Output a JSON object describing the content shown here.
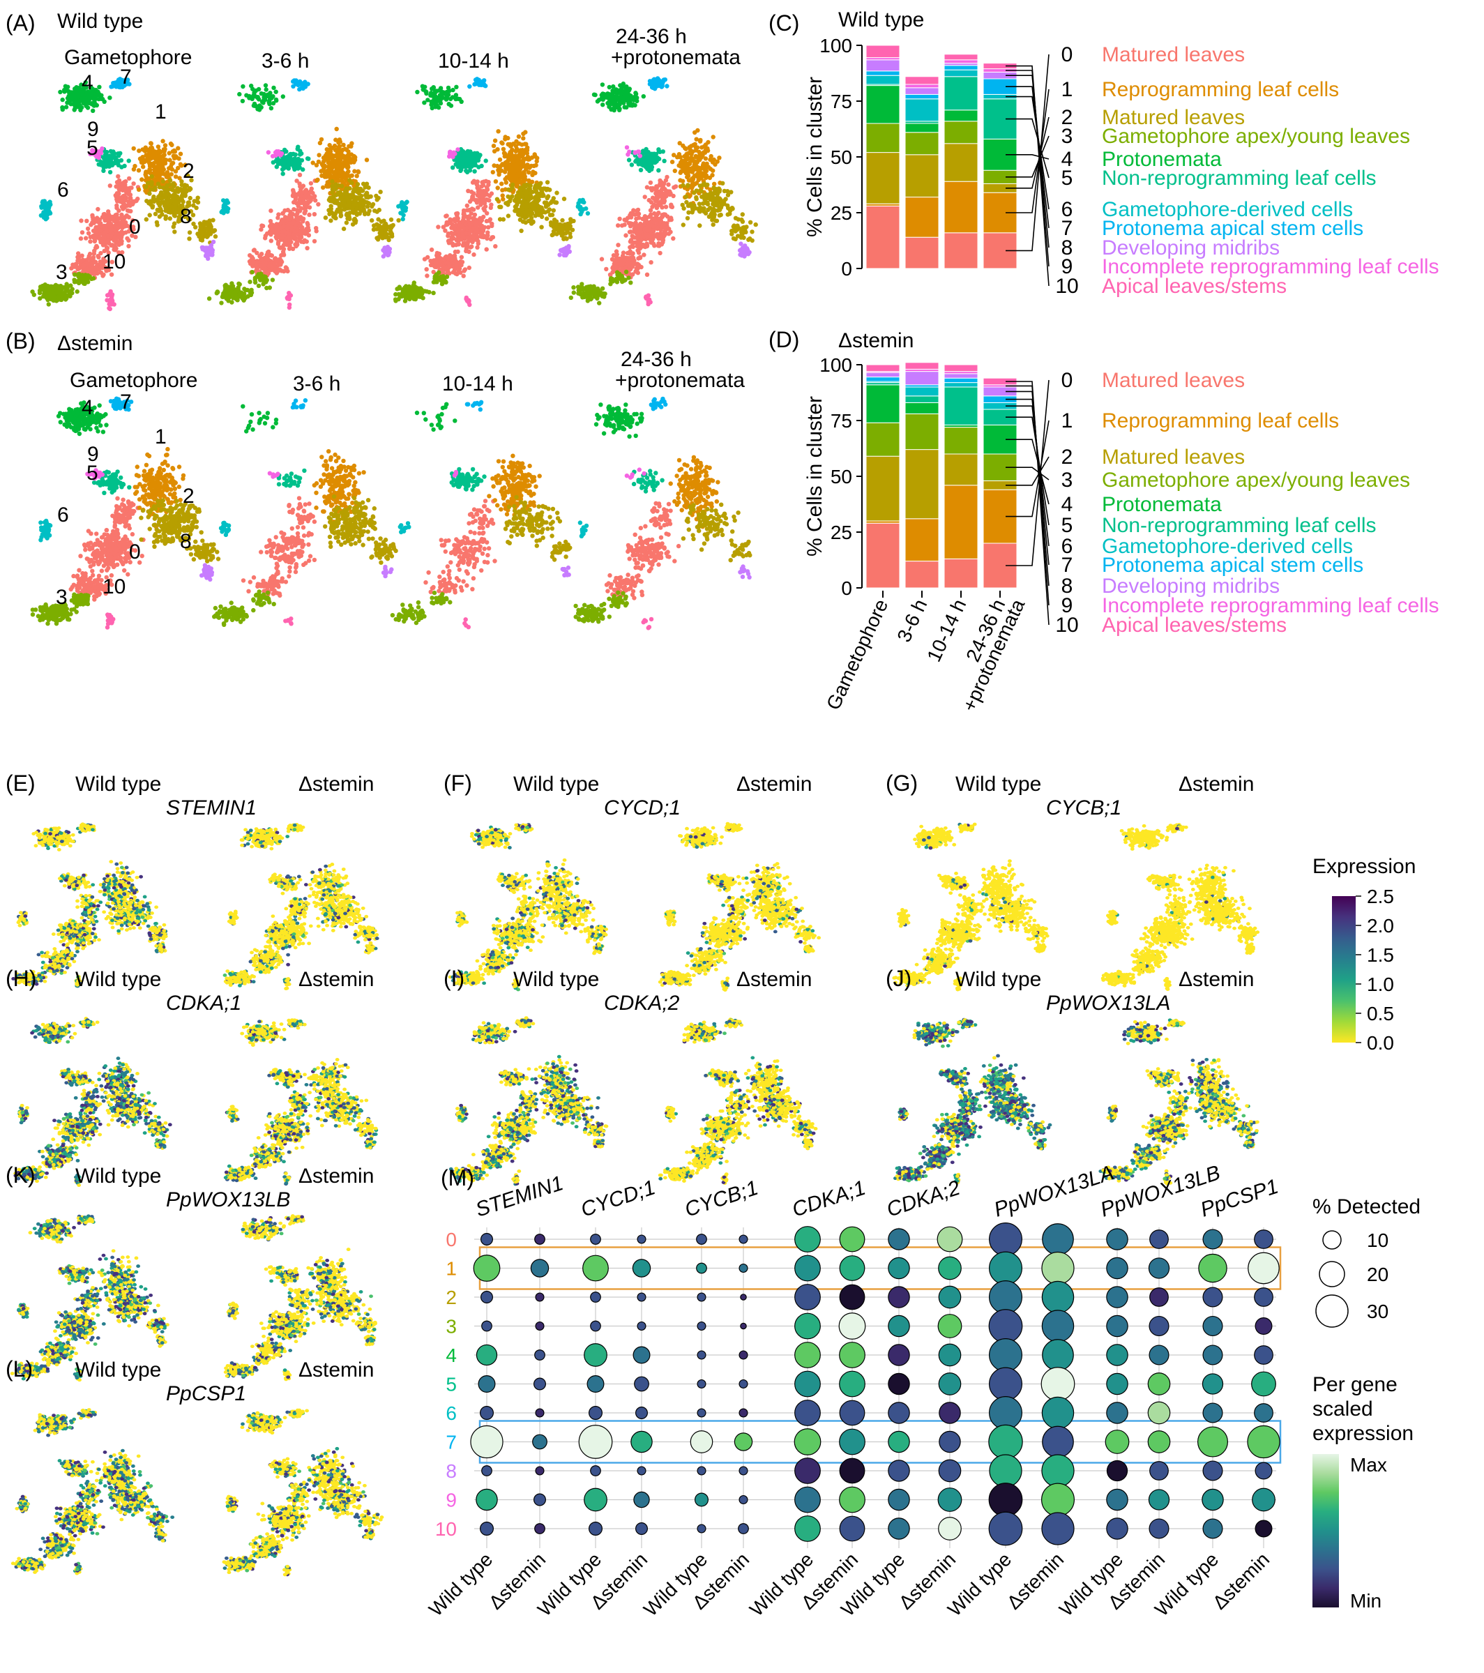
{
  "panels_umap": [
    {
      "letter": "(A)",
      "genotype": "Wild type",
      "labels": [
        "Gametophore",
        "3-6 h",
        "10-14 h",
        "24-36 h",
        "+protonemata"
      ],
      "show_numbers": true
    },
    {
      "letter": "(B)",
      "genotype": "Δstemin",
      "labels": [
        "Gametophore",
        "3-6 h",
        "10-14 h",
        "24-36 h",
        "+protonemata"
      ],
      "show_numbers": true
    }
  ],
  "cluster_numbers": [
    "0",
    "1",
    "2",
    "3",
    "4",
    "5",
    "6",
    "7",
    "8",
    "9",
    "10"
  ],
  "cluster_names": [
    "Matured leaves",
    "Reprogramming leaf cells",
    "Matured leaves",
    "Gametophore apex/young leaves",
    "Protonemata",
    "Non-reprogramming leaf cells",
    "Gametophore-derived cells",
    "Protonema apical stem cells",
    "Developing midribs",
    "Incomplete reprogramming leaf cells",
    "Apical leaves/stems"
  ],
  "cluster_colors": [
    "#F8766D",
    "#DE8C00",
    "#B79F00",
    "#7CAE00",
    "#00BA38",
    "#00C08B",
    "#00BFC4",
    "#00B4F0",
    "#C77CFF",
    "#F564E3",
    "#FF64B0"
  ],
  "expr_panels": [
    {
      "letter": "(E)",
      "wt": "Wild type",
      "ko": "Δstemin",
      "gene": "STEMIN1"
    },
    {
      "letter": "(F)",
      "wt": "Wild type",
      "ko": "Δstemin",
      "gene": "CYCD;1"
    },
    {
      "letter": "(G)",
      "wt": "Wild type",
      "ko": "Δstemin",
      "gene": "CYCB;1"
    },
    {
      "letter": "(H)",
      "wt": "Wild type",
      "ko": "Δstemin",
      "gene": "CDKA;1"
    },
    {
      "letter": "(I)",
      "wt": "Wild type",
      "ko": "Δstemin",
      "gene": "CDKA;2"
    },
    {
      "letter": "(J)",
      "wt": "Wild type",
      "ko": "Δstemin",
      "gene": "PpWOX13LA"
    },
    {
      "letter": "(K)",
      "wt": "Wild type",
      "ko": "Δstemin",
      "gene": "PpWOX13LB"
    },
    {
      "letter": "(L)",
      "wt": "Wild type",
      "ko": "Δstemin",
      "gene": "PpCSP1"
    }
  ],
  "expression_legend": {
    "title": "Expression",
    "ticks": [
      "2.5",
      "2.0",
      "1.5",
      "1.0",
      "0.5",
      "0.0"
    ],
    "values": [
      2.5,
      2.0,
      1.5,
      1.0,
      0.5,
      0.0
    ]
  },
  "dot_legend": {
    "title": "% Detected",
    "sizes": [
      "10",
      "20",
      "30"
    ],
    "values": [
      10,
      20,
      30
    ],
    "scale_title_lines": [
      "Per gene",
      "scaled",
      "expression"
    ],
    "max_label": "Max",
    "min_label": "Min"
  },
  "panel_m_letter": "(M)",
  "chart_data": [
    {
      "type": "bar",
      "stacked": true,
      "panel": "(C)",
      "title": "Wild type",
      "ylabel": "% Cells in cluster",
      "ylim": [
        0,
        100
      ],
      "yticks": [
        "0",
        "25",
        "50",
        "75",
        "100"
      ],
      "categories": [
        "Gametophore",
        "3-6 h",
        "10-14 h",
        "24-36 h +protonemata"
      ],
      "series": [
        {
          "name": "0 Matured leaves",
          "values": [
            28,
            14,
            16,
            16
          ]
        },
        {
          "name": "1 Reprogramming leaf cells",
          "values": [
            1,
            18,
            23,
            18
          ]
        },
        {
          "name": "2 Matured leaves",
          "values": [
            23,
            19,
            17,
            4
          ]
        },
        {
          "name": "3 Gametophore apex/young leaves",
          "values": [
            13,
            10,
            10,
            6
          ]
        },
        {
          "name": "4 Protonemata",
          "values": [
            17,
            4,
            5,
            14
          ]
        },
        {
          "name": "5 Non-reprogramming leaf cells",
          "values": [
            0.5,
            1,
            15,
            18
          ]
        },
        {
          "name": "6 Gametophore-derived cells",
          "values": [
            4,
            10,
            3,
            2
          ]
        },
        {
          "name": "7 Protonema apical stem cells",
          "values": [
            2,
            2,
            2,
            7
          ]
        },
        {
          "name": "8 Developing midribs",
          "values": [
            5,
            3,
            1,
            3
          ]
        },
        {
          "name": "9 Incomplete reprogramming leaf cells",
          "values": [
            1,
            1.5,
            1.5,
            1.5
          ]
        },
        {
          "name": "10 Apical leaves/stems",
          "values": [
            5.5,
            3.5,
            2.5,
            2.5
          ]
        }
      ]
    },
    {
      "type": "bar",
      "stacked": true,
      "panel": "(D)",
      "title": "Δstemin",
      "ylabel": "% Cells in cluster",
      "ylim": [
        0,
        100
      ],
      "yticks": [
        "0",
        "25",
        "50",
        "75",
        "100"
      ],
      "categories": [
        "Gametophore",
        "3-6 h",
        "10-14 h",
        "24-36 h +protonemata"
      ],
      "series": [
        {
          "name": "0 Matured leaves",
          "values": [
            29,
            12,
            13,
            20
          ]
        },
        {
          "name": "1 Reprogramming leaf cells",
          "values": [
            1,
            19,
            33,
            24
          ]
        },
        {
          "name": "2 Matured leaves",
          "values": [
            29,
            31,
            14,
            4
          ]
        },
        {
          "name": "3 Gametophore apex/young leaves",
          "values": [
            15,
            16,
            12,
            12
          ]
        },
        {
          "name": "4 Protonemata",
          "values": [
            17,
            5,
            1,
            13
          ]
        },
        {
          "name": "5 Non-reprogramming leaf cells",
          "values": [
            1,
            3,
            17,
            7
          ]
        },
        {
          "name": "6 Gametophore-derived cells",
          "values": [
            0.5,
            4,
            2,
            3
          ]
        },
        {
          "name": "7 Protonema apical stem cells",
          "values": [
            2,
            1,
            2,
            3
          ]
        },
        {
          "name": "8 Developing midribs",
          "values": [
            2,
            6,
            2,
            4
          ]
        },
        {
          "name": "9 Incomplete reprogramming leaf cells",
          "values": [
            0.5,
            1,
            1,
            1
          ]
        },
        {
          "name": "10 Apical leaves/stems",
          "values": [
            3,
            3,
            3,
            3
          ]
        }
      ]
    },
    {
      "type": "dot",
      "panel": "(M)",
      "genes": [
        "STEMIN1",
        "CYCD;1",
        "CYCB;1",
        "CDKA;1",
        "CDKA;2",
        "PpWOX13LA",
        "PpWOX13LB",
        "PpCSP1"
      ],
      "conditions": [
        "Wild type",
        "Δstemin"
      ],
      "clusters": [
        "0",
        "1",
        "2",
        "3",
        "4",
        "5",
        "6",
        "7",
        "8",
        "9",
        "10"
      ],
      "highlighted_clusters": [
        "1",
        "7"
      ],
      "pct_detected": [
        [
          4,
          3,
          3,
          2,
          3,
          2,
          19,
          18,
          13,
          18,
          31,
          28,
          13,
          10,
          11,
          10
        ],
        [
          20,
          9,
          19,
          9,
          3,
          2,
          19,
          18,
          13,
          15,
          31,
          30,
          13,
          12,
          23,
          28
        ],
        [
          4,
          2,
          3,
          2,
          2,
          1,
          19,
          18,
          13,
          14,
          31,
          29,
          13,
          10,
          11,
          10
        ],
        [
          3,
          2,
          3,
          2,
          2,
          1,
          19,
          20,
          13,
          16,
          32,
          29,
          13,
          11,
          11,
          8
        ],
        [
          12,
          3,
          15,
          8,
          2,
          2,
          19,
          19,
          13,
          14,
          31,
          28,
          13,
          11,
          11,
          10
        ],
        [
          8,
          4,
          8,
          6,
          2,
          2,
          19,
          19,
          13,
          14,
          31,
          32,
          13,
          14,
          12,
          17
        ],
        [
          5,
          2,
          5,
          4,
          2,
          2,
          19,
          18,
          13,
          13,
          31,
          29,
          13,
          14,
          11,
          10
        ],
        [
          30,
          6,
          32,
          13,
          14,
          9,
          20,
          19,
          13,
          13,
          33,
          28,
          16,
          14,
          26,
          30
        ],
        [
          3,
          2,
          3,
          2,
          2,
          2,
          19,
          18,
          13,
          14,
          30,
          30,
          12,
          10,
          11,
          8
        ],
        [
          13,
          4,
          15,
          7,
          5,
          2,
          19,
          19,
          13,
          16,
          32,
          31,
          13,
          12,
          13,
          15
        ],
        [
          5,
          3,
          5,
          4,
          2,
          3,
          19,
          18,
          13,
          15,
          32,
          30,
          13,
          11,
          11,
          8
        ]
      ],
      "scaled_expression": [
        [
          0.2,
          0.1,
          0.3,
          0.2,
          0.2,
          0.2,
          0.6,
          0.7,
          0.35,
          0.9,
          0.25,
          0.4,
          0.35,
          0.2,
          0.35,
          0.3
        ],
        [
          0.8,
          0.35,
          0.75,
          0.5,
          0.45,
          0.4,
          0.45,
          0.6,
          0.45,
          0.6,
          0.45,
          0.9,
          0.4,
          0.4,
          0.75,
          0.95
        ],
        [
          0.25,
          0.1,
          0.3,
          0.2,
          0.2,
          0.1,
          0.2,
          0.0,
          0.1,
          0.45,
          0.35,
          0.45,
          0.35,
          0.1,
          0.3,
          0.3
        ],
        [
          0.25,
          0.1,
          0.3,
          0.2,
          0.2,
          0.1,
          0.6,
          0.95,
          0.45,
          0.75,
          0.3,
          0.35,
          0.35,
          0.3,
          0.35,
          0.15
        ],
        [
          0.65,
          0.2,
          0.65,
          0.35,
          0.2,
          0.1,
          0.7,
          0.75,
          0.1,
          0.55,
          0.35,
          0.5,
          0.55,
          0.4,
          0.4,
          0.3
        ],
        [
          0.35,
          0.2,
          0.4,
          0.3,
          0.3,
          0.2,
          0.55,
          0.65,
          0.05,
          0.5,
          0.2,
          1.0,
          0.55,
          0.75,
          0.45,
          0.6
        ],
        [
          0.25,
          0.1,
          0.25,
          0.2,
          0.2,
          0.1,
          0.3,
          0.2,
          0.2,
          0.1,
          0.35,
          0.45,
          0.35,
          0.9,
          0.35,
          0.4
        ],
        [
          1.0,
          0.35,
          1.0,
          0.6,
          0.95,
          0.8,
          0.75,
          0.55,
          0.6,
          0.3,
          0.65,
          0.3,
          0.75,
          0.7,
          0.75,
          0.75
        ],
        [
          0.2,
          0.1,
          0.2,
          0.2,
          0.2,
          0.2,
          0.1,
          0.05,
          0.25,
          0.3,
          0.6,
          0.65,
          0.0,
          0.3,
          0.3,
          0.25
        ],
        [
          0.6,
          0.25,
          0.6,
          0.35,
          0.45,
          0.2,
          0.35,
          0.8,
          0.35,
          0.45,
          0.0,
          0.8,
          0.4,
          0.5,
          0.55,
          0.55
        ],
        [
          0.25,
          0.15,
          0.3,
          0.2,
          0.2,
          0.3,
          0.65,
          0.2,
          0.4,
          0.95,
          0.25,
          0.3,
          0.3,
          0.2,
          0.35,
          0.05
        ]
      ]
    }
  ]
}
